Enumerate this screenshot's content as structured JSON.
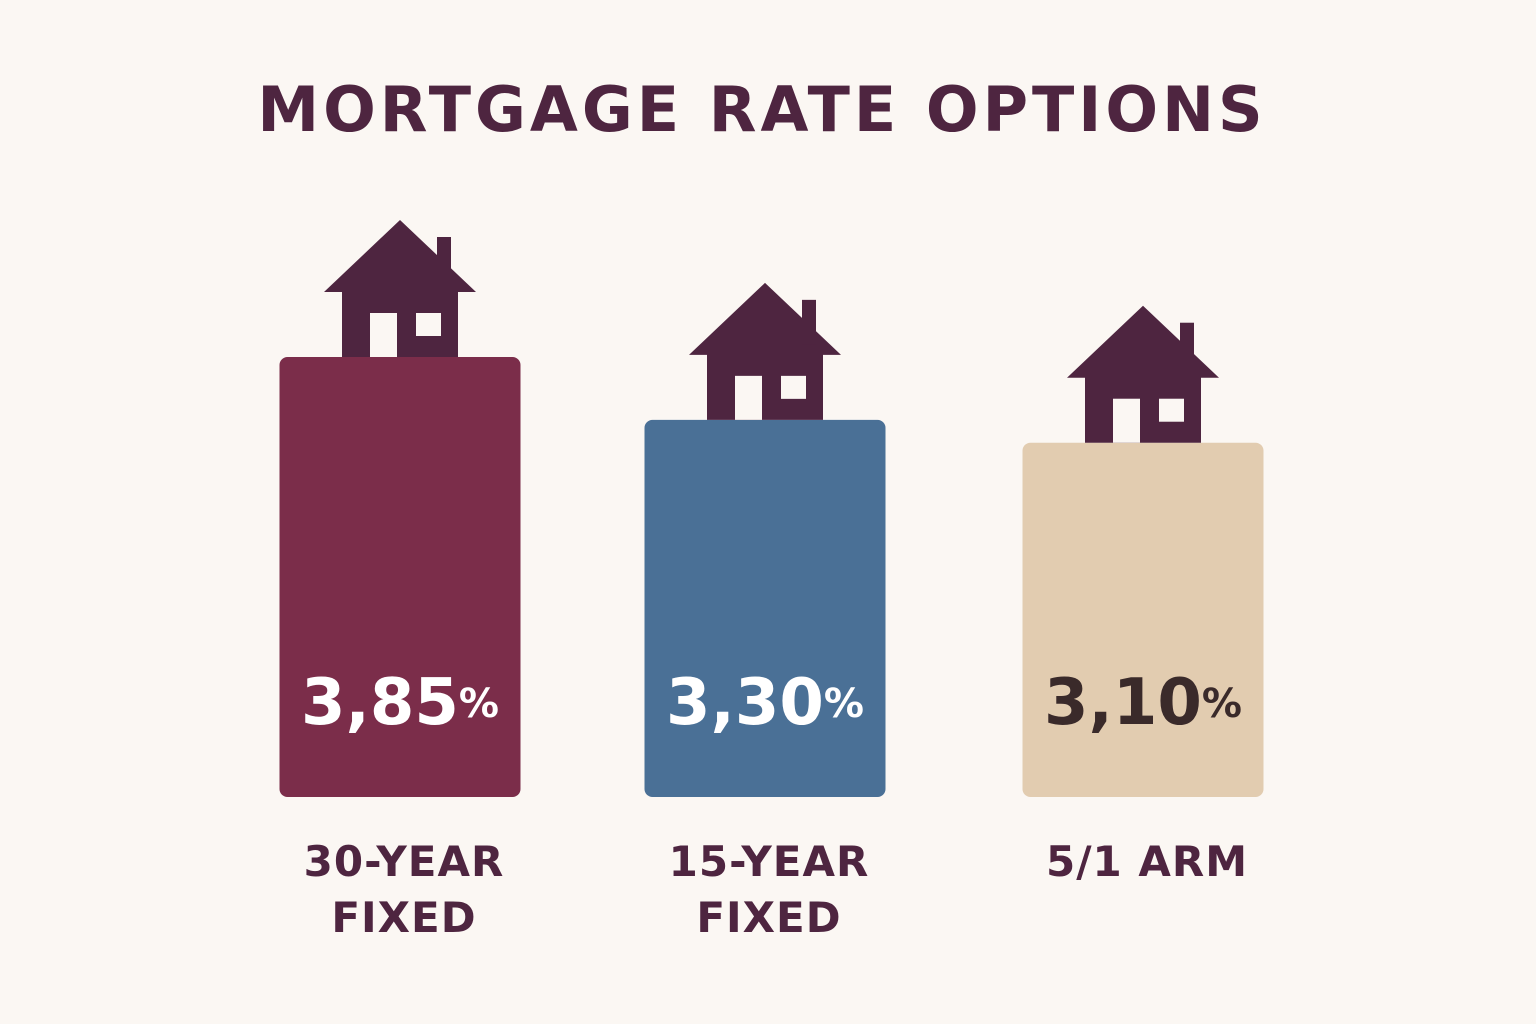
{
  "chart_data": {
    "type": "bar",
    "title": "MORTGAGE RATE OPTIONS",
    "categories": [
      "30-YEAR FIXED",
      "15-YEAR FIXED",
      "5/1 ARM"
    ],
    "values": [
      3.85,
      3.3,
      3.1
    ],
    "value_labels": [
      "3,85%",
      "3,30%",
      "3,10%"
    ],
    "colors": [
      "#7b2d4a",
      "#4a7096",
      "#e2ccb0"
    ],
    "label_colors": [
      "#ffffff",
      "#ffffff",
      "#3a2a2a"
    ]
  }
}
